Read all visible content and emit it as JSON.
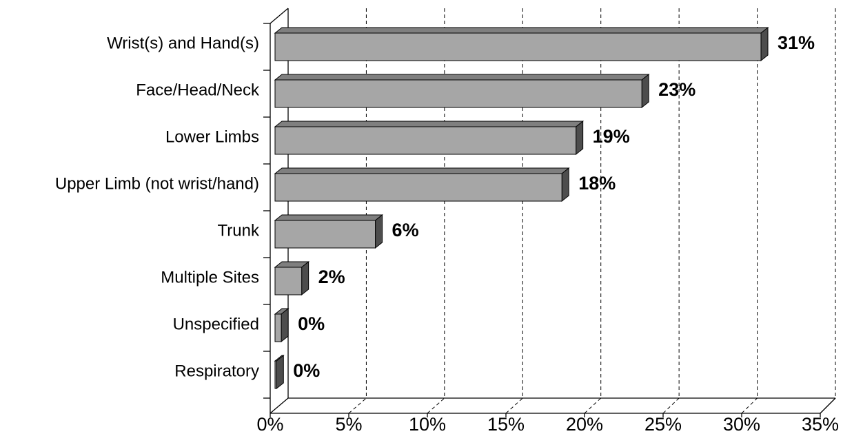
{
  "chart_data": {
    "type": "bar3d_horizontal",
    "categories": [
      "Wrist(s) and Hand(s)",
      "Face/Head/Neck",
      "Lower Limbs",
      "Upper Limb (not wrist/hand)",
      "Trunk",
      "Multiple Sites",
      "Unspecified",
      "Respiratory"
    ],
    "values": [
      31,
      23.4,
      19.2,
      18.3,
      6.4,
      1.7,
      0.4,
      0.1
    ],
    "value_labels": [
      "31%",
      "23%",
      "19%",
      "18%",
      "6%",
      "2%",
      "0%",
      "0%"
    ],
    "color": "#a6a6a6",
    "xlim": [
      0,
      35
    ],
    "xticks": [
      {
        "value": 0,
        "label": "0%"
      },
      {
        "value": 5,
        "label": "5%"
      },
      {
        "value": 10,
        "label": "10%"
      },
      {
        "value": 15,
        "label": "15%"
      },
      {
        "value": 20,
        "label": "20%"
      },
      {
        "value": 25,
        "label": "25%"
      },
      {
        "value": 30,
        "label": "30%"
      },
      {
        "value": 35,
        "label": "35%"
      }
    ],
    "grid": true
  }
}
